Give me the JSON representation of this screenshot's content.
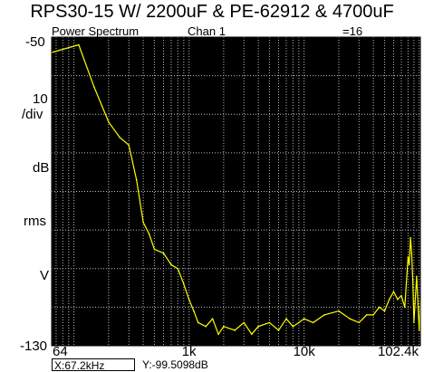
{
  "title": "RPS30-15 W/ 2200uF & PE-62912 & 4700uF",
  "header": {
    "measurement": "Power Spectrum",
    "channel": "Chan 1",
    "averages": "=16"
  },
  "y_axis_labels": {
    "top": "-50",
    "scale": "10",
    "per_div": "/div",
    "unit_db": "dB",
    "unit_rms": "rms",
    "unit_v": "V",
    "bottom": "-130"
  },
  "readout": {
    "x": "X:67.2kHz",
    "y": "Y:-99.5098dB"
  },
  "colors": {
    "background": "#000000",
    "grid": "#bdbdbd",
    "trace": "#ffff00",
    "page": "#ffffff"
  },
  "chart_data": {
    "type": "line",
    "xscale": "log",
    "xlim": [
      64,
      102400
    ],
    "ylim": [
      -130,
      -50
    ],
    "xticks": [
      {
        "value": 64,
        "label": "64"
      },
      {
        "value": 1000,
        "label": "1k"
      },
      {
        "value": 10000,
        "label": "10k"
      },
      {
        "value": 102400,
        "label": "102.4k"
      }
    ],
    "y_divisions": 8,
    "grid": true,
    "series": [
      {
        "x": [
          64,
          110,
          150,
          200,
          250,
          300,
          350,
          400,
          450,
          500,
          600,
          700,
          800,
          900,
          1000,
          1100,
          1200,
          1400,
          1600,
          1800,
          2000,
          2500,
          3000,
          3500,
          4000,
          5000,
          6000,
          7000,
          8000,
          9000,
          10000,
          12000,
          15000,
          20000,
          25000,
          30000,
          35000,
          40000,
          45000,
          50000,
          55000,
          60000,
          65000,
          70000,
          75000,
          80000,
          82000,
          84000,
          86000,
          88000,
          90000,
          92000,
          95000,
          100000,
          102400
        ],
        "y": [
          -54,
          -52,
          -63,
          -72,
          -76,
          -78,
          -87,
          -98,
          -101,
          -105,
          -106,
          -109,
          -110,
          -114,
          -118,
          -121,
          -124,
          -125,
          -123,
          -127,
          -125,
          -126,
          -124,
          -127,
          -125,
          -124,
          -126,
          -123,
          -125,
          -124,
          -123,
          -124,
          -122,
          -121,
          -123,
          -124,
          -122,
          -122,
          -120,
          -121,
          -118,
          -116,
          -118,
          -117,
          -120,
          -107,
          -109,
          -102,
          -106,
          -113,
          -124,
          -119,
          -112,
          -126,
          -118
        ]
      }
    ]
  }
}
